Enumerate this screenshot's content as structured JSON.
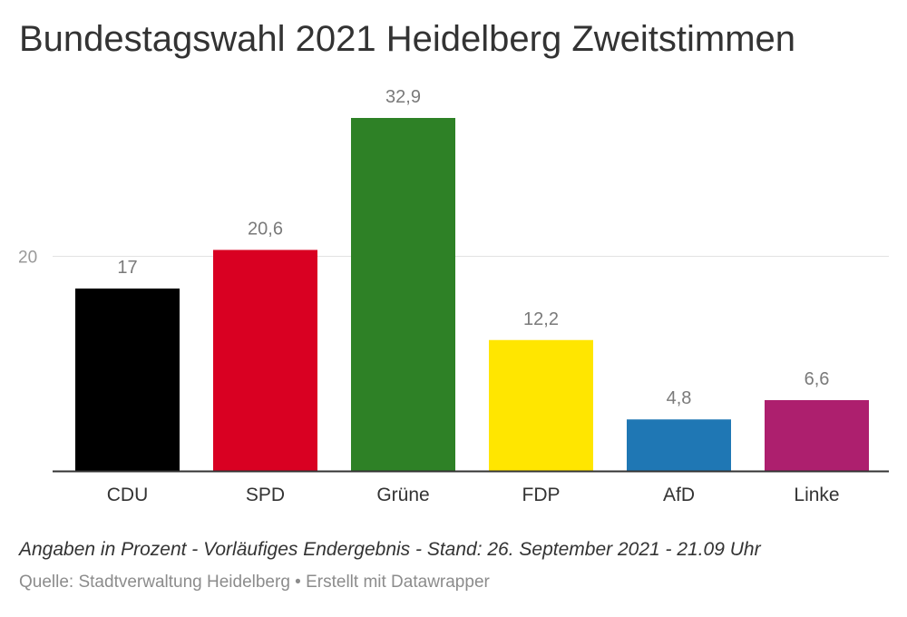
{
  "chart_data": {
    "type": "bar",
    "title": "Bundestagswahl 2021 Heidelberg Zweitstimmen",
    "categories": [
      "CDU",
      "SPD",
      "Grüne",
      "FDP",
      "AfD",
      "Linke"
    ],
    "values": [
      17,
      20.6,
      32.9,
      12.2,
      4.8,
      6.6
    ],
    "value_labels": [
      "17",
      "20,6",
      "32,9",
      "12,2",
      "4,8",
      "6,6"
    ],
    "colors": [
      "#000000",
      "#d90022",
      "#2e8126",
      "#ffe600",
      "#1f77b4",
      "#ad1f6e"
    ],
    "yticks": [
      20
    ],
    "ytick_labels": [
      "20"
    ],
    "ylim": [
      0,
      33
    ],
    "grid": true,
    "xlabel": "",
    "ylabel": ""
  },
  "notes": "Angaben in Prozent - Vorläufiges Endergebnis - Stand: 26. September 2021 - 21.09 Uhr",
  "source": "Quelle: Stadtverwaltung Heidelberg • Erstellt mit Datawrapper"
}
